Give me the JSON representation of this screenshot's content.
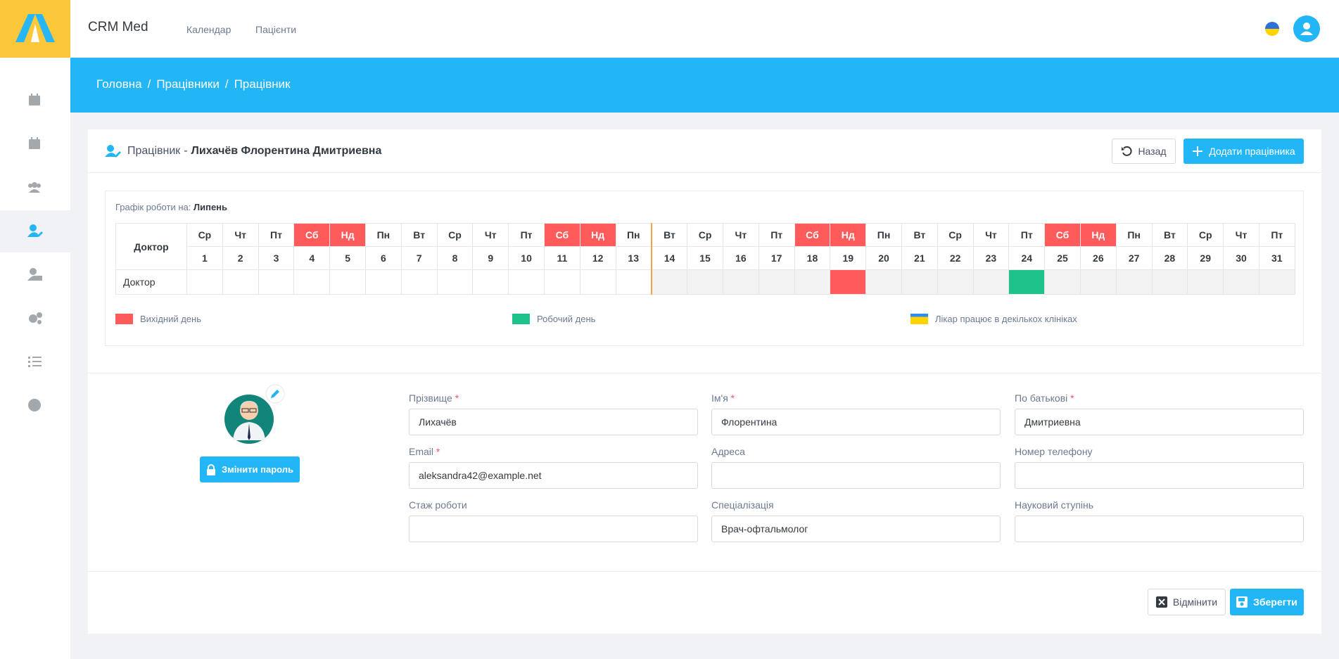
{
  "header": {
    "brand": "CRM Med",
    "nav": [
      "Календар",
      "Пацієнти"
    ]
  },
  "breadcrumb": {
    "items": [
      "Головна",
      "Працівники",
      "Працівник"
    ],
    "separator": "/"
  },
  "card": {
    "title": "Працівник",
    "dash": "-",
    "name": "Лихачёв Флорентина Дмитриевна",
    "back_button": "Назад",
    "add_button": "Додати працівника"
  },
  "schedule": {
    "label": "Графік роботи на:",
    "month": "Липень",
    "corner": "Доктор",
    "row_label": "Доктор",
    "days": [
      {
        "weekday": "Ср",
        "day": 1,
        "weekend": false,
        "state": "open"
      },
      {
        "weekday": "Чт",
        "day": 2,
        "weekend": false,
        "state": "open"
      },
      {
        "weekday": "Пт",
        "day": 3,
        "weekend": false,
        "state": "open"
      },
      {
        "weekday": "Сб",
        "day": 4,
        "weekend": true,
        "state": "open"
      },
      {
        "weekday": "Нд",
        "day": 5,
        "weekend": true,
        "state": "open"
      },
      {
        "weekday": "Пн",
        "day": 6,
        "weekend": false,
        "state": "open"
      },
      {
        "weekday": "Вт",
        "day": 7,
        "weekend": false,
        "state": "open"
      },
      {
        "weekday": "Ср",
        "day": 8,
        "weekend": false,
        "state": "open"
      },
      {
        "weekday": "Чт",
        "day": 9,
        "weekend": false,
        "state": "open"
      },
      {
        "weekday": "Пт",
        "day": 10,
        "weekend": false,
        "state": "open"
      },
      {
        "weekday": "Сб",
        "day": 11,
        "weekend": true,
        "state": "open"
      },
      {
        "weekday": "Нд",
        "day": 12,
        "weekend": true,
        "state": "open"
      },
      {
        "weekday": "Пн",
        "day": 13,
        "weekend": false,
        "state": "open"
      },
      {
        "weekday": "Вт",
        "day": 14,
        "weekend": false,
        "state": "closed"
      },
      {
        "weekday": "Ср",
        "day": 15,
        "weekend": false,
        "state": "closed"
      },
      {
        "weekday": "Чт",
        "day": 16,
        "weekend": false,
        "state": "closed"
      },
      {
        "weekday": "Пт",
        "day": 17,
        "weekend": false,
        "state": "closed"
      },
      {
        "weekday": "Сб",
        "day": 18,
        "weekend": true,
        "state": "closed"
      },
      {
        "weekday": "Нд",
        "day": 19,
        "weekend": true,
        "state": "off"
      },
      {
        "weekday": "Пн",
        "day": 20,
        "weekend": false,
        "state": "closed"
      },
      {
        "weekday": "Вт",
        "day": 21,
        "weekend": false,
        "state": "closed"
      },
      {
        "weekday": "Ср",
        "day": 22,
        "weekend": false,
        "state": "closed"
      },
      {
        "weekday": "Чт",
        "day": 23,
        "weekend": false,
        "state": "closed"
      },
      {
        "weekday": "Пт",
        "day": 24,
        "weekend": false,
        "state": "work"
      },
      {
        "weekday": "Сб",
        "day": 25,
        "weekend": true,
        "state": "closed"
      },
      {
        "weekday": "Нд",
        "day": 26,
        "weekend": true,
        "state": "closed"
      },
      {
        "weekday": "Пн",
        "day": 27,
        "weekend": false,
        "state": "closed"
      },
      {
        "weekday": "Вт",
        "day": 28,
        "weekend": false,
        "state": "closed"
      },
      {
        "weekday": "Ср",
        "day": 29,
        "weekend": false,
        "state": "closed"
      },
      {
        "weekday": "Чт",
        "day": 30,
        "weekend": false,
        "state": "closed"
      },
      {
        "weekday": "Пт",
        "day": 31,
        "weekend": false,
        "state": "closed"
      }
    ],
    "legend": [
      {
        "name": "Вихідний день",
        "colors": [
          "#ff5b5b"
        ]
      },
      {
        "name": "Робочий день",
        "colors": [
          "#1ec28b"
        ]
      },
      {
        "name": "Лікар працює в декількох клініках",
        "colors": [
          "#2e8bf0",
          "#ffd400"
        ]
      }
    ]
  },
  "profile": {
    "change_password": "Змінити пароль"
  },
  "form": {
    "required_mark": "*",
    "fields": [
      {
        "label": "Прізвище",
        "required": true,
        "value": "Лихачёв"
      },
      {
        "label": "Ім'я",
        "required": true,
        "value": "Флорентина"
      },
      {
        "label": "По батькові",
        "required": true,
        "value": "Дмитриевна"
      },
      {
        "label": "Email",
        "required": true,
        "value": "aleksandra42@example.net"
      },
      {
        "label": "Адреса",
        "required": false,
        "value": null
      },
      {
        "label": "Номер телефону",
        "required": false,
        "value": null
      },
      {
        "label": "Стаж роботи",
        "required": false,
        "value": null
      },
      {
        "label": "Спеціалізація",
        "required": false,
        "value": "Врач-офтальмолог"
      },
      {
        "label": "Науковий ступінь",
        "required": false,
        "value": null
      }
    ]
  },
  "footer": {
    "cancel": "Відмінити",
    "save": "Зберегти"
  }
}
